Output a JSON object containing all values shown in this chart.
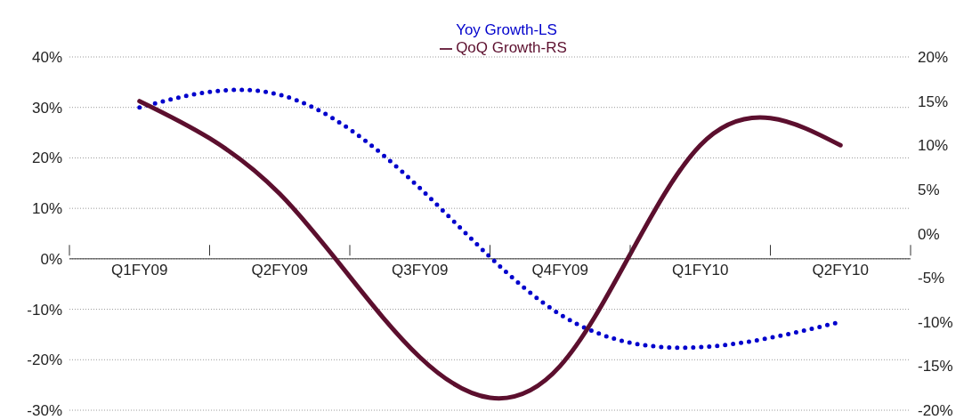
{
  "chart_data": {
    "type": "line",
    "categories": [
      "Q1FY09",
      "Q2FY09",
      "Q3FY09",
      "Q4FY09",
      "Q1FY10",
      "Q2FY10"
    ],
    "series": [
      {
        "name": "Yoy Growth-LS",
        "color": "#0000cc",
        "line_style": "dotted",
        "values": [
          30,
          32.5,
          14,
          -11,
          -17.5,
          -12.5
        ]
      },
      {
        "name": "QoQ Growth-RS",
        "color": "#5c0f2e",
        "line_style": "solid",
        "axis": "y2",
        "values": [
          15,
          4.5,
          -14,
          -15,
          10,
          10
        ]
      }
    ],
    "ylim": [
      -30,
      40
    ],
    "yticks": [
      {
        "value": -30,
        "label": "-30%"
      },
      {
        "value": -20,
        "label": "-20%"
      },
      {
        "value": -10,
        "label": "-10%"
      },
      {
        "value": 0,
        "label": "0%"
      },
      {
        "value": 10,
        "label": "10%"
      },
      {
        "value": 20,
        "label": "20%"
      },
      {
        "value": 30,
        "label": "30%"
      },
      {
        "value": 40,
        "label": "40%"
      }
    ],
    "y2lim": [
      -20,
      20
    ],
    "y2ticks": [
      {
        "value": -20,
        "label": "-20%"
      },
      {
        "value": -15,
        "label": "-15%"
      },
      {
        "value": -10,
        "label": "-10%"
      },
      {
        "value": -5,
        "label": "-5%"
      },
      {
        "value": 0,
        "label": "0%"
      },
      {
        "value": 5,
        "label": "5%"
      },
      {
        "value": 10,
        "label": "10%"
      },
      {
        "value": 15,
        "label": "15%"
      },
      {
        "value": 20,
        "label": "20%"
      }
    ],
    "grid": "y",
    "legend": "top",
    "marker": "none"
  }
}
